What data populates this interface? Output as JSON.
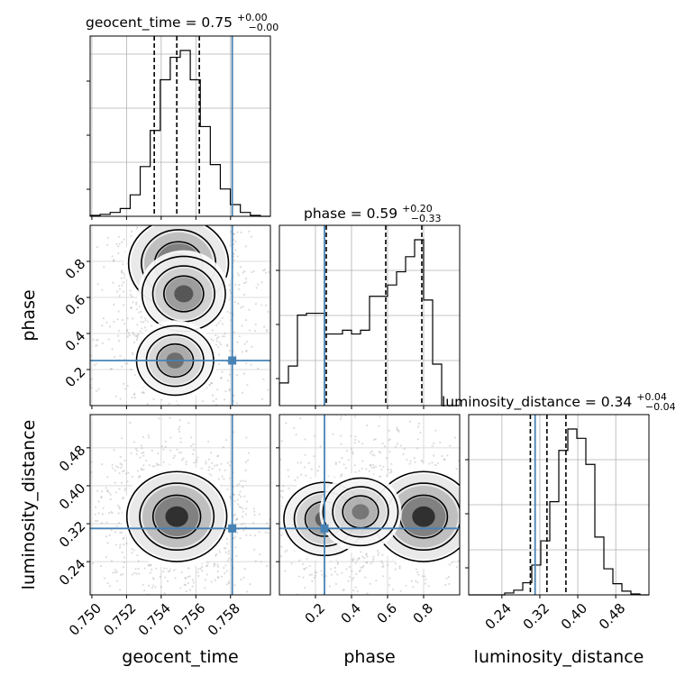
{
  "chart_data": {
    "type": "corner",
    "parameters": [
      {
        "key": "geocent_time",
        "label": "geocent_time",
        "range": [
          0.7499,
          0.7603
        ],
        "ticks": [
          0.75,
          0.752,
          0.754,
          0.756,
          0.758
        ],
        "tick_labels": [
          "0.750",
          "0.752",
          "0.754",
          "0.756",
          "0.758"
        ],
        "truth": 0.7581,
        "quantiles": [
          0.7536,
          0.7549,
          0.7562
        ],
        "title": {
          "name": "geocent_time = 0.75",
          "sup": "+0.00",
          "sub": "−0.00"
        },
        "hist_counts": [
          1,
          2,
          4,
          8,
          22,
          51,
          88,
          140,
          163,
          170,
          140,
          92,
          53,
          28,
          12,
          4,
          1,
          0
        ]
      },
      {
        "key": "phase",
        "label": "phase",
        "range": [
          0.0,
          1.0
        ],
        "ticks": [
          0.2,
          0.4,
          0.6,
          0.8
        ],
        "tick_labels": [
          "0.2",
          "0.4",
          "0.6",
          "0.8"
        ],
        "truth": 0.25,
        "quantiles": [
          0.26,
          0.59,
          0.79
        ],
        "title": {
          "name": "phase = 0.59",
          "sup": "+0.20",
          "sub": "−0.33"
        },
        "hist_counts": [
          12,
          21,
          48,
          49,
          49,
          38,
          38,
          40,
          38,
          40,
          58,
          58,
          64,
          71,
          79,
          88,
          56,
          22,
          0,
          0
        ]
      },
      {
        "key": "luminosity_distance",
        "label": "luminosity_distance",
        "range": [
          0.17,
          0.55
        ],
        "ticks": [
          0.24,
          0.32,
          0.4,
          0.48
        ],
        "tick_labels": [
          "0.24",
          "0.32",
          "0.40",
          "0.48"
        ],
        "truth": 0.31,
        "quantiles": [
          0.3,
          0.335,
          0.375
        ],
        "title": {
          "name": "luminosity_distance = 0.34",
          "sup": "+0.04",
          "sub": "−0.04"
        },
        "hist_counts": [
          0,
          0,
          0,
          0,
          2,
          5,
          13,
          32,
          58,
          100,
          155,
          178,
          168,
          140,
          62,
          28,
          12,
          4,
          1,
          0
        ]
      }
    ],
    "density_2d": [
      {
        "x": "geocent_time",
        "y": "phase",
        "peaks": [
          {
            "x": 0.755,
            "y": 0.79,
            "w": 1.0
          },
          {
            "x": 0.7553,
            "y": 0.62,
            "w": 0.6
          },
          {
            "x": 0.7548,
            "y": 0.25,
            "w": 0.45
          }
        ]
      },
      {
        "x": "geocent_time",
        "y": "luminosity_distance",
        "peaks": [
          {
            "x": 0.7549,
            "y": 0.335,
            "w": 1.0
          }
        ]
      },
      {
        "x": "phase",
        "y": "luminosity_distance",
        "peaks": [
          {
            "x": 0.8,
            "y": 0.335,
            "w": 1.0
          },
          {
            "x": 0.25,
            "y": 0.33,
            "w": 0.55
          },
          {
            "x": 0.45,
            "y": 0.345,
            "w": 0.4
          }
        ]
      }
    ],
    "grid": true,
    "truth_color": "#4682b4",
    "quantile_line_style": "dashed"
  }
}
